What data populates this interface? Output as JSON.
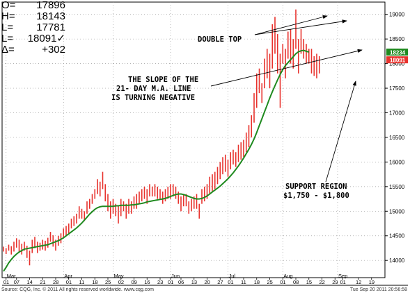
{
  "ohlc": {
    "open_label": "O=",
    "open": "17896",
    "high_label": "H=",
    "high": "18143",
    "low_label": "L=",
    "low": "17781",
    "last_label": "L=",
    "last": "18091✓",
    "change_label": "Δ=",
    "change": "+302"
  },
  "footer": {
    "source": "Source: CQG, Inc. © 2011 All rights reserved worldwide. www.cqg.com",
    "timestamp": "Tue Sep 20 2011 20:56:58"
  },
  "colors": {
    "bars": "#e8322d",
    "ma_line": "#1f8a1f",
    "price_box": "#1f8a1f",
    "last_box": "#e8322d"
  },
  "chart_data": {
    "type": "ohlc_bar",
    "ylim": [
      13650,
      19250
    ],
    "y_ticks": [
      14000,
      14500,
      15000,
      15500,
      16000,
      16500,
      17000,
      17500,
      18000,
      18500,
      19000
    ],
    "price_labels": {
      "ma": "18234",
      "last": "18091"
    },
    "month_labels": [
      {
        "label": "Mar",
        "idx": 1
      },
      {
        "label": "Apr",
        "idx": 23
      },
      {
        "label": "May",
        "idx": 42
      },
      {
        "label": "Jun",
        "idx": 64
      },
      {
        "label": "Jul",
        "idx": 86
      },
      {
        "label": "Aug",
        "idx": 107
      },
      {
        "label": "Sep",
        "idx": 128
      }
    ],
    "x_tick_labels": [
      "01",
      "07",
      "14",
      "21",
      "28",
      "01",
      "11",
      "18",
      "25",
      "02",
      "09",
      "16",
      "23",
      "01",
      "06",
      "13",
      "20",
      "27",
      "01",
      "11",
      "18",
      "25",
      "01",
      "08",
      "15",
      "22",
      "29",
      "01",
      "12",
      "19"
    ],
    "x_tick_idx": [
      1,
      5,
      10,
      15,
      20,
      25,
      30,
      35,
      40,
      45,
      50,
      55,
      60,
      64,
      68,
      73,
      78,
      83,
      87,
      92,
      97,
      102,
      107,
      112,
      117,
      122,
      127,
      130,
      136,
      141
    ],
    "bars": [
      [
        14180,
        14280
      ],
      [
        14130,
        14250
      ],
      [
        14200,
        14320
      ],
      [
        14120,
        14290
      ],
      [
        14180,
        14380
      ],
      [
        14260,
        14450
      ],
      [
        14180,
        14420
      ],
      [
        14120,
        14340
      ],
      [
        14200,
        14380
      ],
      [
        14050,
        14300
      ],
      [
        13900,
        14200
      ],
      [
        14150,
        14420
      ],
      [
        14250,
        14480
      ],
      [
        14150,
        14380
      ],
      [
        14200,
        14360
      ],
      [
        14220,
        14420
      ],
      [
        14200,
        14400
      ],
      [
        14260,
        14460
      ],
      [
        14380,
        14580
      ],
      [
        14280,
        14510
      ],
      [
        14200,
        14420
      ],
      [
        14300,
        14500
      ],
      [
        14350,
        14550
      ],
      [
        14450,
        14650
      ],
      [
        14500,
        14700
      ],
      [
        14550,
        14750
      ],
      [
        14650,
        14850
      ],
      [
        14700,
        14900
      ],
      [
        14750,
        14950
      ],
      [
        14850,
        15100
      ],
      [
        14850,
        15050
      ],
      [
        14800,
        15000
      ],
      [
        14950,
        15200
      ],
      [
        15050,
        15250
      ],
      [
        15150,
        15350
      ],
      [
        15250,
        15450
      ],
      [
        15350,
        15650
      ],
      [
        15300,
        15600
      ],
      [
        15450,
        15800
      ],
      [
        15200,
        15550
      ],
      [
        15000,
        15350
      ],
      [
        14850,
        15200
      ],
      [
        14950,
        15250
      ],
      [
        14900,
        15150
      ],
      [
        14750,
        15100
      ],
      [
        14900,
        15250
      ],
      [
        15000,
        15200
      ],
      [
        14850,
        15150
      ],
      [
        14950,
        15250
      ],
      [
        14950,
        15200
      ],
      [
        15050,
        15300
      ],
      [
        15050,
        15350
      ],
      [
        15150,
        15400
      ],
      [
        15200,
        15450
      ],
      [
        15250,
        15500
      ],
      [
        15150,
        15450
      ],
      [
        15300,
        15550
      ],
      [
        15300,
        15500
      ],
      [
        15300,
        15550
      ],
      [
        15250,
        15500
      ],
      [
        15250,
        15450
      ],
      [
        15150,
        15400
      ],
      [
        15200,
        15450
      ],
      [
        15250,
        15500
      ],
      [
        15250,
        15550
      ],
      [
        15300,
        15550
      ],
      [
        15250,
        15500
      ],
      [
        15150,
        15400
      ],
      [
        15000,
        15300
      ],
      [
        15100,
        15350
      ],
      [
        15100,
        15350
      ],
      [
        14950,
        15200
      ],
      [
        15000,
        15250
      ],
      [
        15050,
        15300
      ],
      [
        15050,
        15350
      ],
      [
        14850,
        15150
      ],
      [
        15150,
        15450
      ],
      [
        15200,
        15500
      ],
      [
        15250,
        15550
      ],
      [
        15350,
        15700
      ],
      [
        15400,
        15750
      ],
      [
        15450,
        15800
      ],
      [
        15550,
        15900
      ],
      [
        15650,
        16000
      ],
      [
        15750,
        16100
      ],
      [
        15800,
        16150
      ],
      [
        15700,
        16050
      ],
      [
        15850,
        16200
      ],
      [
        15950,
        16250
      ],
      [
        15900,
        16200
      ],
      [
        16000,
        16350
      ],
      [
        16050,
        16400
      ],
      [
        16100,
        16450
      ],
      [
        16200,
        16600
      ],
      [
        16300,
        16750
      ],
      [
        16500,
        16950
      ],
      [
        16800,
        17400
      ],
      [
        17100,
        17800
      ],
      [
        17400,
        17900
      ],
      [
        17200,
        17600
      ],
      [
        17500,
        18100
      ],
      [
        17700,
        18300
      ],
      [
        17500,
        18200
      ],
      [
        17900,
        18800
      ],
      [
        18200,
        18950
      ],
      [
        17800,
        18600
      ],
      [
        17100,
        18200
      ],
      [
        18000,
        18400
      ],
      [
        17700,
        18300
      ],
      [
        18100,
        18650
      ],
      [
        18000,
        18700
      ],
      [
        17900,
        18500
      ],
      [
        18300,
        19100
      ],
      [
        17800,
        18500
      ],
      [
        18200,
        18700
      ],
      [
        18100,
        18500
      ],
      [
        18000,
        18400
      ],
      [
        18000,
        18300
      ],
      [
        17800,
        18300
      ],
      [
        17750,
        18150
      ],
      [
        17700,
        18200
      ],
      [
        17800,
        18150
      ]
    ],
    "bar_x_start_idx": 0,
    "ma_series": [
      13780,
      13860,
      13950,
      14020,
      14080,
      14130,
      14170,
      14200,
      14230,
      14240,
      14250,
      14260,
      14270,
      14280,
      14290,
      14300,
      14310,
      14320,
      14340,
      14360,
      14380,
      14400,
      14430,
      14460,
      14500,
      14540,
      14580,
      14620,
      14660,
      14710,
      14760,
      14820,
      14880,
      14940,
      14990,
      15040,
      15070,
      15090,
      15100,
      15100,
      15100,
      15100,
      15100,
      15110,
      15110,
      15120,
      15120,
      15120,
      15120,
      15130,
      15130,
      15140,
      15150,
      15160,
      15170,
      15190,
      15200,
      15210,
      15220,
      15230,
      15240,
      15250,
      15260,
      15280,
      15300,
      15320,
      15340,
      15350,
      15350,
      15340,
      15320,
      15300,
      15280,
      15260,
      15250,
      15250,
      15260,
      15280,
      15310,
      15350,
      15390,
      15430,
      15470,
      15510,
      15560,
      15610,
      15660,
      15720,
      15780,
      15850,
      15920,
      16000,
      16080,
      16170,
      16260,
      16360,
      16470,
      16600,
      16740,
      16880,
      17020,
      17160,
      17300,
      17430,
      17550,
      17670,
      17780,
      17880,
      17960,
      18020,
      18080,
      18140,
      18200,
      18240,
      18260,
      18270,
      18250,
      18234
    ],
    "annotations": [
      {
        "text": "DOUBLE TOP"
      },
      {
        "text": "THE SLOPE OF THE"
      },
      {
        "text": "21- DAY M.A. LINE"
      },
      {
        "text": "IS TURNING NEGATIVE"
      },
      {
        "text": "SUPPORT REGION"
      },
      {
        "text": "$1,750 - $1,800"
      }
    ]
  }
}
